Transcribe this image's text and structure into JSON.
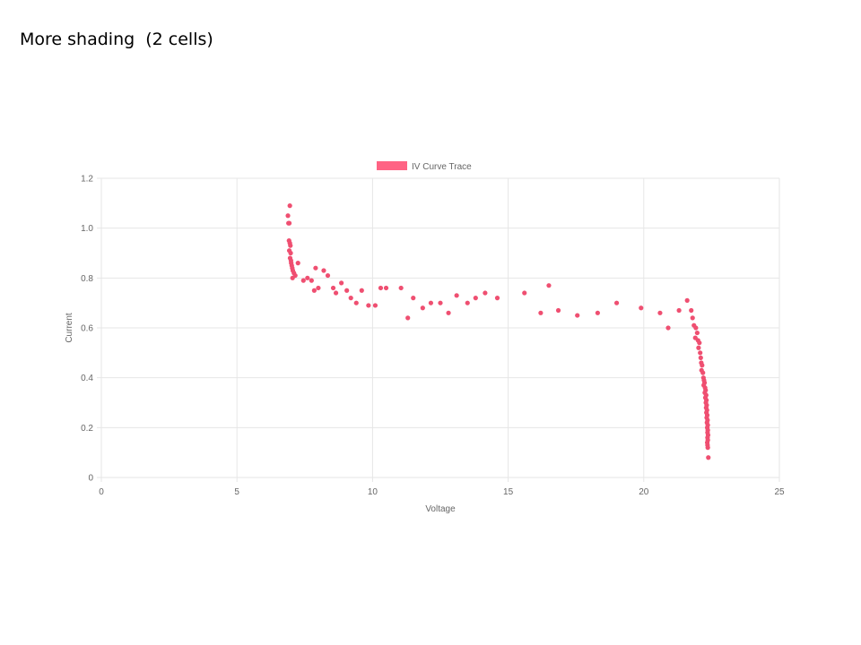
{
  "slide": {
    "title": "More shading  (2 cells)"
  },
  "colors": {
    "point": "#ef4f71",
    "legend": "#ff6384",
    "grid": "#e6e6e6",
    "tick_text": "#666666"
  },
  "chart_data": {
    "type": "scatter",
    "title": "",
    "xlabel": "Voltage",
    "ylabel": "Current",
    "xlim": [
      0,
      25
    ],
    "ylim": [
      0,
      1.2
    ],
    "x_ticks": [
      "0",
      "5",
      "10",
      "15",
      "20",
      "25"
    ],
    "y_ticks": [
      "0",
      "0.2",
      "0.4",
      "0.6",
      "0.8",
      "1.0",
      "1.2"
    ],
    "grid": true,
    "legend": {
      "position": "top-center"
    },
    "series": [
      {
        "name": "IV Curve Trace",
        "points": [
          [
            6.95,
            1.09
          ],
          [
            6.88,
            1.05
          ],
          [
            6.9,
            1.02
          ],
          [
            6.93,
            1.02
          ],
          [
            6.92,
            0.95
          ],
          [
            6.95,
            0.94
          ],
          [
            6.97,
            0.93
          ],
          [
            6.93,
            0.91
          ],
          [
            6.98,
            0.9
          ],
          [
            6.96,
            0.88
          ],
          [
            6.99,
            0.87
          ],
          [
            7.0,
            0.86
          ],
          [
            7.02,
            0.85
          ],
          [
            7.04,
            0.84
          ],
          [
            7.06,
            0.83
          ],
          [
            7.1,
            0.82
          ],
          [
            7.15,
            0.81
          ],
          [
            7.05,
            0.8
          ],
          [
            7.25,
            0.86
          ],
          [
            7.45,
            0.79
          ],
          [
            7.6,
            0.8
          ],
          [
            7.75,
            0.79
          ],
          [
            7.85,
            0.75
          ],
          [
            7.9,
            0.84
          ],
          [
            8.0,
            0.76
          ],
          [
            8.2,
            0.83
          ],
          [
            8.35,
            0.81
          ],
          [
            8.55,
            0.76
          ],
          [
            8.65,
            0.74
          ],
          [
            8.85,
            0.78
          ],
          [
            9.05,
            0.75
          ],
          [
            9.2,
            0.72
          ],
          [
            9.4,
            0.7
          ],
          [
            9.6,
            0.75
          ],
          [
            9.85,
            0.69
          ],
          [
            10.1,
            0.69
          ],
          [
            10.3,
            0.76
          ],
          [
            10.5,
            0.76
          ],
          [
            11.05,
            0.76
          ],
          [
            11.3,
            0.64
          ],
          [
            11.5,
            0.72
          ],
          [
            11.85,
            0.68
          ],
          [
            12.15,
            0.7
          ],
          [
            12.5,
            0.7
          ],
          [
            12.8,
            0.66
          ],
          [
            13.1,
            0.73
          ],
          [
            13.5,
            0.7
          ],
          [
            13.8,
            0.72
          ],
          [
            14.15,
            0.74
          ],
          [
            14.6,
            0.72
          ],
          [
            15.6,
            0.74
          ],
          [
            16.2,
            0.66
          ],
          [
            16.5,
            0.77
          ],
          [
            16.85,
            0.67
          ],
          [
            17.55,
            0.65
          ],
          [
            18.3,
            0.66
          ],
          [
            19.0,
            0.7
          ],
          [
            19.9,
            0.68
          ],
          [
            20.6,
            0.66
          ],
          [
            20.9,
            0.6
          ],
          [
            21.3,
            0.67
          ],
          [
            21.6,
            0.71
          ],
          [
            21.75,
            0.67
          ],
          [
            21.8,
            0.64
          ],
          [
            21.85,
            0.61
          ],
          [
            21.92,
            0.6
          ],
          [
            21.97,
            0.58
          ],
          [
            21.9,
            0.56
          ],
          [
            22.0,
            0.55
          ],
          [
            22.05,
            0.54
          ],
          [
            22.02,
            0.52
          ],
          [
            22.08,
            0.5
          ],
          [
            22.1,
            0.48
          ],
          [
            22.12,
            0.46
          ],
          [
            22.15,
            0.45
          ],
          [
            22.13,
            0.43
          ],
          [
            22.18,
            0.42
          ],
          [
            22.2,
            0.4
          ],
          [
            22.22,
            0.39
          ],
          [
            22.24,
            0.38
          ],
          [
            22.21,
            0.37
          ],
          [
            22.26,
            0.36
          ],
          [
            22.28,
            0.35
          ],
          [
            22.25,
            0.34
          ],
          [
            22.3,
            0.33
          ],
          [
            22.27,
            0.32
          ],
          [
            22.31,
            0.31
          ],
          [
            22.29,
            0.3
          ],
          [
            22.32,
            0.29
          ],
          [
            22.3,
            0.28
          ],
          [
            22.33,
            0.27
          ],
          [
            22.31,
            0.26
          ],
          [
            22.34,
            0.25
          ],
          [
            22.32,
            0.24
          ],
          [
            22.35,
            0.23
          ],
          [
            22.33,
            0.22
          ],
          [
            22.36,
            0.21
          ],
          [
            22.34,
            0.2
          ],
          [
            22.36,
            0.19
          ],
          [
            22.35,
            0.18
          ],
          [
            22.37,
            0.17
          ],
          [
            22.35,
            0.16
          ],
          [
            22.36,
            0.15
          ],
          [
            22.34,
            0.14
          ],
          [
            22.35,
            0.13
          ],
          [
            22.36,
            0.12
          ],
          [
            22.38,
            0.08
          ]
        ]
      }
    ]
  }
}
